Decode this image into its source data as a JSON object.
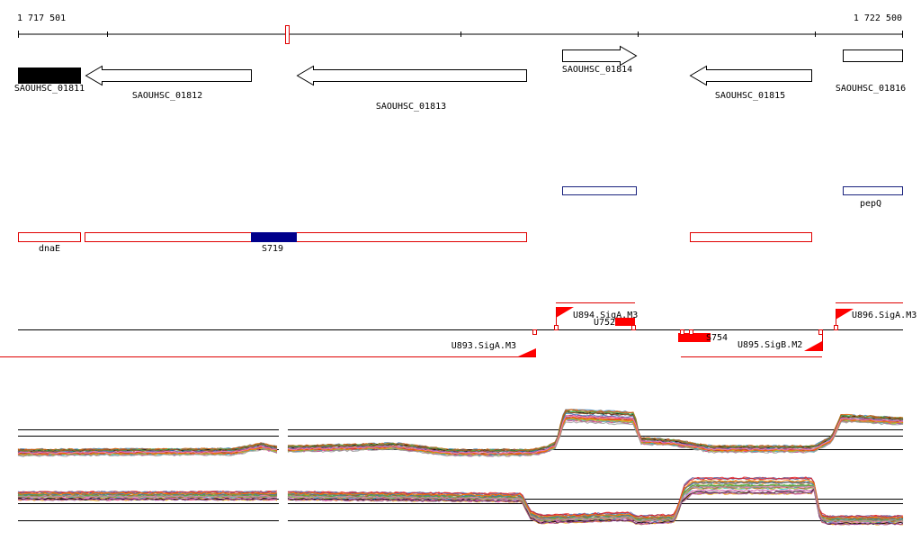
{
  "coordinates": {
    "start": "1 717 501",
    "end": "1 722 500"
  },
  "colors": {
    "gene_outline": "#000000",
    "operon_outline": "#1a237e",
    "operon_fill": "#00008b",
    "region_outline": "#e00000",
    "region_fill": "#ff0000",
    "promoter": "#ff0000",
    "position_marker": "#e00000"
  },
  "genes": [
    {
      "label": "SAOUHSC_01811",
      "strand": "filled"
    },
    {
      "label": "SAOUHSC_01812",
      "strand": "minus"
    },
    {
      "label": "SAOUHSC_01813",
      "strand": "minus"
    },
    {
      "label": "SAOUHSC_01814",
      "strand": "plus"
    },
    {
      "label": "SAOUHSC_01815",
      "strand": "minus"
    },
    {
      "label": "SAOUHSC_01816",
      "strand": "box"
    }
  ],
  "operons": [
    {
      "label": ""
    },
    {
      "label": "pepQ"
    }
  ],
  "regions": [
    {
      "label": "dnaE"
    },
    {
      "label": "S719"
    },
    {
      "label": ""
    }
  ],
  "promoters": [
    {
      "label": "U893.SigA.M3",
      "strand": "minus"
    },
    {
      "label": "U894.SigA.M3",
      "strand": "plus"
    },
    {
      "label": "U895.SigB.M2",
      "strand": "minus"
    },
    {
      "label": "U896.SigA.M3",
      "strand": "plus"
    }
  ],
  "small_features": [
    {
      "label": "U752"
    },
    {
      "label": "S754"
    }
  ],
  "expression_panels": [
    {
      "name": "plus-strand"
    },
    {
      "name": "minus-strand"
    }
  ]
}
